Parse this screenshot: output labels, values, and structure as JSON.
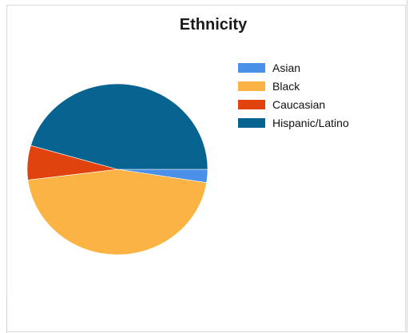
{
  "chart_data": {
    "type": "pie",
    "title": "Ethnicity",
    "legend_position": "right",
    "categories": [
      "Asian",
      "Black",
      "Caucasian",
      "Hispanic/Latino"
    ],
    "values": [
      2.5,
      45.5,
      6.5,
      45.5
    ],
    "colors": [
      "#4a8fe8",
      "#fbb444",
      "#e0430d",
      "#07638f"
    ]
  }
}
